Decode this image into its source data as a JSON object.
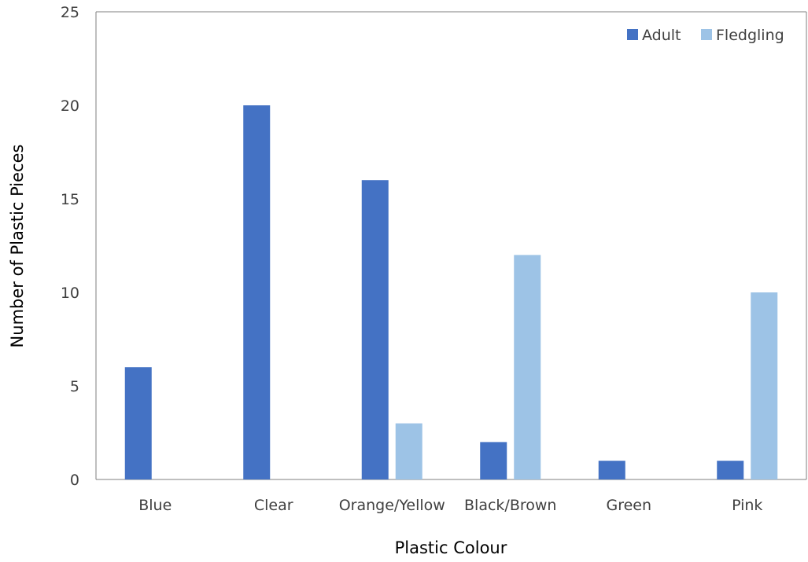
{
  "chart_data": {
    "type": "bar",
    "categories": [
      "Blue",
      "Clear",
      "Orange/Yellow",
      "Black/Brown",
      "Green",
      "Pink"
    ],
    "series": [
      {
        "name": "Adult",
        "values": [
          6,
          20,
          16,
          2,
          1,
          1
        ],
        "color": "#4472C4"
      },
      {
        "name": "Fledgling",
        "values": [
          0,
          0,
          3,
          12,
          0,
          10
        ],
        "color": "#9DC3E6"
      }
    ],
    "xlabel": "Plastic Colour",
    "ylabel": "Number of Plastic Pieces",
    "ylim": [
      0,
      25
    ],
    "yticks": [
      0,
      5,
      10,
      15,
      20,
      25
    ],
    "grid": false,
    "legend": "top-right"
  }
}
